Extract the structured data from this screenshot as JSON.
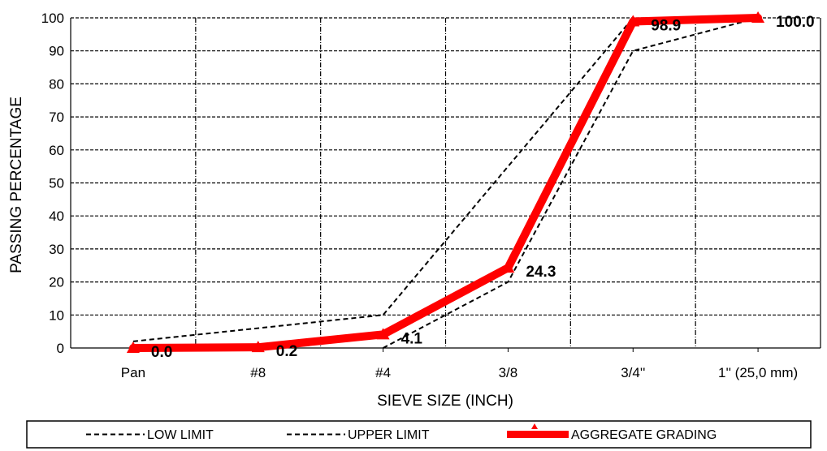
{
  "chart_data": {
    "type": "line",
    "title": "",
    "xlabel": "SIEVE SIZE (INCH)",
    "ylabel": "PASSING PERCENTAGE",
    "categories": [
      "Pan",
      "#8",
      "#4",
      "3/8",
      "3/4''",
      "1'' (25,0 mm)"
    ],
    "ylim": [
      0,
      100
    ],
    "yticks": [
      "0",
      "10",
      "20",
      "30",
      "40",
      "50",
      "60",
      "70",
      "80",
      "90",
      "100"
    ],
    "grid": true,
    "legend_position": "bottom",
    "series": [
      {
        "name": "LOW LIMIT",
        "style": "dashed",
        "color": "#000000",
        "points": [
          [
            2,
            0
          ],
          [
            3,
            20
          ],
          [
            4,
            90
          ],
          [
            5,
            100
          ]
        ]
      },
      {
        "name": "UPPER LIMIT",
        "style": "dashed",
        "color": "#000000",
        "points": [
          [
            0,
            2
          ],
          [
            2,
            10
          ],
          [
            3,
            55
          ],
          [
            4,
            100
          ]
        ]
      },
      {
        "name": "AGGREGATE GRADING",
        "style": "solid",
        "color": "#ff0000",
        "points": [
          [
            0,
            0.0
          ],
          [
            1,
            0.2
          ],
          [
            2,
            4.1
          ],
          [
            3,
            24.3
          ],
          [
            4,
            98.9
          ],
          [
            5,
            100.0
          ]
        ],
        "labels": [
          "0.0",
          "0.2",
          "4.1",
          "24.3",
          "98.9",
          "100.0"
        ]
      }
    ]
  }
}
